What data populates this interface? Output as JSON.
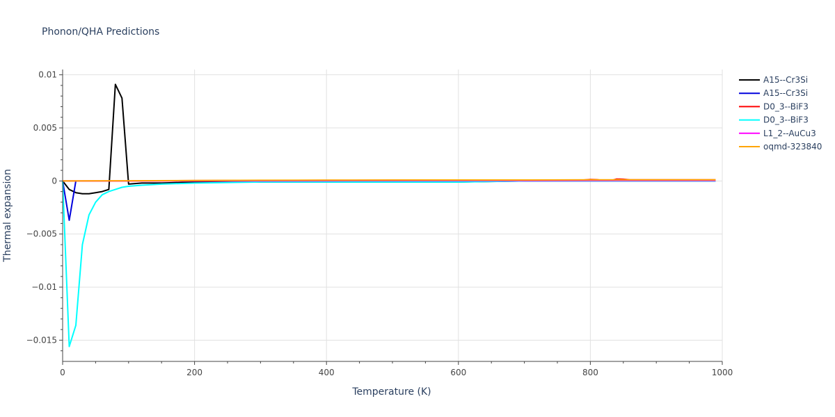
{
  "chart_data": {
    "type": "line",
    "title": "Phonon/QHA Predictions",
    "xlabel": "Temperature (K)",
    "ylabel": "Thermal expansion",
    "xlim": [
      0,
      1000
    ],
    "ylim": [
      -0.017,
      0.0105
    ],
    "x_ticks": [
      0,
      200,
      400,
      600,
      800,
      1000
    ],
    "x_tick_labels": [
      "0",
      "200",
      "400",
      "600",
      "800",
      "1000"
    ],
    "y_ticks": [
      0.01,
      0.005,
      0,
      -0.005,
      -0.01,
      -0.015
    ],
    "y_tick_labels": [
      "0.01",
      "0.005",
      "0",
      "−0.005",
      "−0.01",
      "−0.015"
    ],
    "grid": true,
    "legend_position": "top-right",
    "series": [
      {
        "name": "A15--Cr3Si",
        "color": "#000000",
        "x": [
          0,
          10,
          20,
          30,
          40,
          50,
          60,
          70,
          80,
          90,
          100,
          120,
          150,
          200,
          300,
          400,
          500,
          600,
          700,
          800,
          900,
          990
        ],
        "y": [
          0,
          -0.0008,
          -0.0011,
          -0.0012,
          -0.0012,
          -0.0011,
          -0.001,
          -0.0008,
          0.0091,
          0.0078,
          -0.0003,
          -0.0002,
          -0.0002,
          -0.0001,
          -0.0001,
          -0.0001,
          -0.0001,
          -0.0001,
          0,
          0,
          0,
          0
        ]
      },
      {
        "name": "A15--Cr3Si",
        "color": "#0000dd",
        "x": [
          0,
          10,
          20
        ],
        "y": [
          0,
          -0.0037,
          0
        ]
      },
      {
        "name": "D0_3--BiF3",
        "color": "#ff0000",
        "x": [
          0,
          100,
          200,
          300,
          400,
          500,
          600,
          700,
          790,
          800,
          810,
          820,
          830,
          840,
          850,
          860,
          900,
          950,
          990
        ],
        "y": [
          0,
          0,
          3e-05,
          5e-05,
          6e-05,
          7e-05,
          8e-05,
          8e-05,
          9e-05,
          0.00014,
          0.00012,
          3e-05,
          2e-05,
          0.00018,
          0.00016,
          0.0001,
          0.0001,
          0.0001,
          0.0001
        ]
      },
      {
        "name": "D0_3--BiF3",
        "color": "#00ffff",
        "x": [
          0,
          10,
          20,
          30,
          40,
          50,
          60,
          70,
          80,
          90,
          100,
          120,
          150,
          200,
          300,
          400,
          500,
          600,
          700,
          800,
          900,
          990
        ],
        "y": [
          0,
          -0.0156,
          -0.0136,
          -0.006,
          -0.0032,
          -0.002,
          -0.0013,
          -0.001,
          -0.0008,
          -0.0006,
          -0.0005,
          -0.0004,
          -0.0003,
          -0.0002,
          -0.0001,
          -0.0001,
          -0.0001,
          -0.0001,
          0,
          0,
          0,
          0
        ]
      },
      {
        "name": "L1_2--AuCu3",
        "color": "#ff00ff",
        "x": [
          0,
          200,
          400,
          600,
          800,
          990
        ],
        "y": [
          0,
          0,
          2e-05,
          3e-05,
          4e-05,
          4e-05
        ]
      },
      {
        "name": "oqmd-323840",
        "color": "#ffa500",
        "x": [
          0,
          100,
          200,
          300,
          400,
          500,
          600,
          700,
          800,
          900,
          990
        ],
        "y": [
          0,
          2e-05,
          4e-05,
          6e-05,
          7e-05,
          8e-05,
          9e-05,
          9e-05,
          0.0001,
          0.0001,
          0.0001
        ]
      }
    ]
  }
}
